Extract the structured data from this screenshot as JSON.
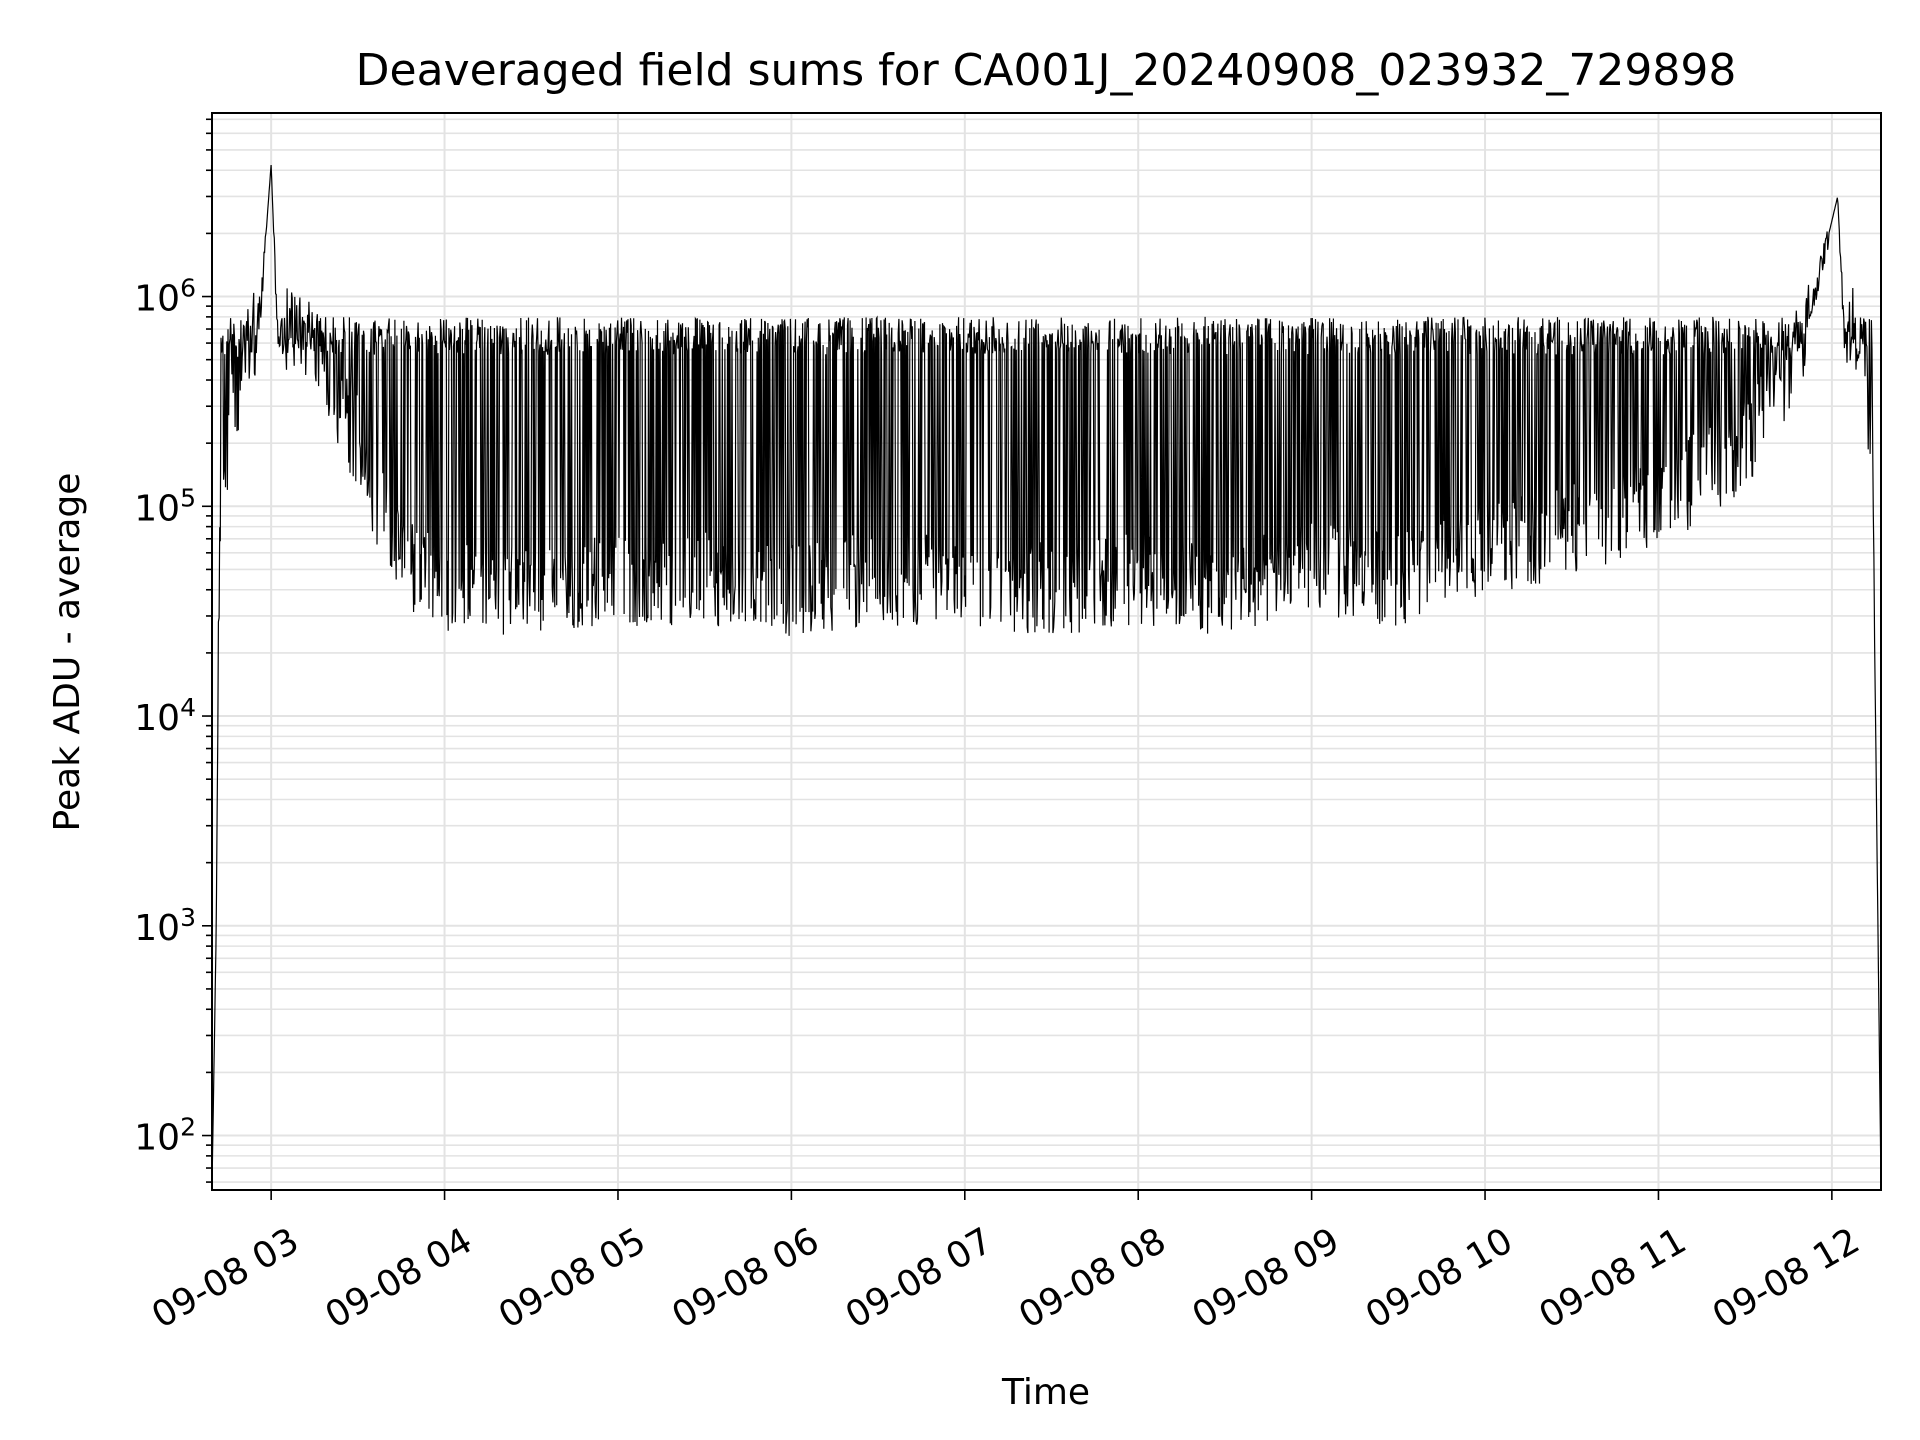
{
  "chart_data": {
    "type": "line",
    "title": "Deaveraged field sums for CA001J_20240908_023932_729898",
    "xlabel": "Time",
    "ylabel": "Peak ADU - average",
    "yscale": "log",
    "grid": true,
    "xlim": [
      "2024-09-08T02:39:32",
      "2024-09-08T12:17:00"
    ],
    "ylim": [
      55,
      7500000
    ],
    "x_ticks": [
      {
        "value": "2024-09-08T03:00",
        "label": "09-08 03"
      },
      {
        "value": "2024-09-08T04:00",
        "label": "09-08 04"
      },
      {
        "value": "2024-09-08T05:00",
        "label": "09-08 05"
      },
      {
        "value": "2024-09-08T06:00",
        "label": "09-08 06"
      },
      {
        "value": "2024-09-08T07:00",
        "label": "09-08 07"
      },
      {
        "value": "2024-09-08T08:00",
        "label": "09-08 08"
      },
      {
        "value": "2024-09-08T09:00",
        "label": "09-08 09"
      },
      {
        "value": "2024-09-08T10:00",
        "label": "09-08 10"
      },
      {
        "value": "2024-09-08T11:00",
        "label": "09-08 11"
      },
      {
        "value": "2024-09-08T12:00",
        "label": "09-08 12"
      }
    ],
    "y_ticks": [
      {
        "value": 100,
        "base": "10",
        "exp": "2"
      },
      {
        "value": 1000,
        "base": "10",
        "exp": "3"
      },
      {
        "value": 10000,
        "base": "10",
        "exp": "4"
      },
      {
        "value": 100000,
        "base": "10",
        "exp": "5"
      },
      {
        "value": 1000000,
        "base": "10",
        "exp": "6"
      }
    ],
    "series": [
      {
        "color": "#000000",
        "points": [
          {
            "x": "2024-09-08T02:39:32",
            "y": 55
          },
          {
            "x": "2024-09-08T02:41:00",
            "y": 1000
          },
          {
            "x": "2024-09-08T02:42:00",
            "y": 50000
          },
          {
            "x": "2024-09-08T02:43:00",
            "y": 120000
          },
          {
            "x": "2024-09-08T02:45:00",
            "y": 200000
          },
          {
            "x": "2024-09-08T02:48:00",
            "y": 350000
          },
          {
            "x": "2024-09-08T02:52:00",
            "y": 550000
          },
          {
            "x": "2024-09-08T02:56:00",
            "y": 750000
          },
          {
            "x": "2024-09-08T03:00:00",
            "y": 4300000
          },
          {
            "x": "2024-09-08T03:02:00",
            "y": 750000
          },
          {
            "x": "2024-09-08T03:10:00",
            "y": 700000
          },
          {
            "x": "2024-09-08T03:15:00",
            "y": 600000
          },
          {
            "x": "2024-09-08T03:20:00",
            "y": 400000
          },
          {
            "x": "2024-09-08T03:30:00",
            "y": 200000
          },
          {
            "x": "2024-09-08T03:40:00",
            "y": 80000
          },
          {
            "x": "2024-09-08T03:50:00",
            "y": 50000
          },
          {
            "x": "2024-09-08T04:00:00",
            "y": 40000
          },
          {
            "x": "2024-09-08T04:30:00",
            "y": 40000
          },
          {
            "x": "2024-09-08T05:00:00",
            "y": 45000
          },
          {
            "x": "2024-09-08T05:30:00",
            "y": 45000
          },
          {
            "x": "2024-09-08T06:00:00",
            "y": 40000
          },
          {
            "x": "2024-09-08T06:30:00",
            "y": 45000
          },
          {
            "x": "2024-09-08T07:00:00",
            "y": 45000
          },
          {
            "x": "2024-09-08T07:30:00",
            "y": 40000
          },
          {
            "x": "2024-09-08T08:00:00",
            "y": 45000
          },
          {
            "x": "2024-09-08T08:30:00",
            "y": 40000
          },
          {
            "x": "2024-09-08T09:00:00",
            "y": 50000
          },
          {
            "x": "2024-09-08T09:30:00",
            "y": 45000
          },
          {
            "x": "2024-09-08T10:00:00",
            "y": 60000
          },
          {
            "x": "2024-09-08T10:30:00",
            "y": 80000
          },
          {
            "x": "2024-09-08T11:00:00",
            "y": 100000
          },
          {
            "x": "2024-09-08T11:30:00",
            "y": 200000
          },
          {
            "x": "2024-09-08T11:50:00",
            "y": 600000
          },
          {
            "x": "2024-09-08T12:02:00",
            "y": 3000000
          },
          {
            "x": "2024-09-08T12:04:00",
            "y": 800000
          },
          {
            "x": "2024-09-08T12:10:00",
            "y": 650000
          },
          {
            "x": "2024-09-08T12:14:00",
            "y": 200000
          },
          {
            "x": "2024-09-08T12:17:00",
            "y": 55
          }
        ]
      }
    ]
  }
}
